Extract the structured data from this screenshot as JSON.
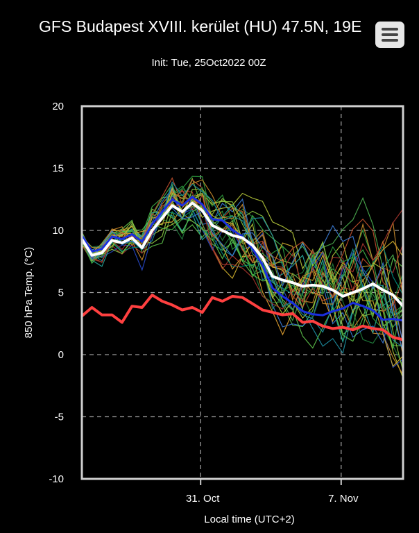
{
  "header": {
    "title": "GFS Budapest XVIII. kerület (HU) 47.5N, 19E",
    "subtitle": "Init: Tue, 25Oct2022 00Z",
    "menu_icon": "hamburger-menu-icon"
  },
  "colors": {
    "background": "#000000",
    "control": "#ffffff",
    "mean": "#ffffff",
    "climatology": "#ff4040",
    "grid": "#999999"
  },
  "chart_data": {
    "type": "line",
    "title": "GFS Budapest XVIII. kerület (HU) 47.5N, 19E",
    "subtitle": "Init: Tue, 25Oct2022 00Z",
    "xlabel": "Local time (UTC+2)",
    "ylabel": "850 hPa Temp. (°C)",
    "ylim": [
      -10,
      20
    ],
    "yticks": [
      -10,
      -5,
      0,
      5,
      10,
      15,
      20
    ],
    "x_tick_labels": [
      "31. Oct",
      "7. Nov"
    ],
    "xlim": [
      "2022-10-25T02:00",
      "2022-11-10T02:00"
    ],
    "x_ticks": [
      "2022-10-31T00:00",
      "2022-11-07T00:00"
    ],
    "grid": true,
    "series": [
      {
        "name": "",
        "color": "#ffffff",
        "x": [
          "2022-10-25T02:00",
          "2022-10-25T14:00",
          "2022-10-26T02:00",
          "2022-10-26T14:00",
          "2022-10-27T02:00",
          "2022-10-27T14:00",
          "2022-10-28T02:00",
          "2022-10-28T14:00",
          "2022-10-29T02:00",
          "2022-10-29T14:00",
          "2022-10-30T02:00",
          "2022-10-30T14:00",
          "2022-10-31T02:00",
          "2022-10-31T14:00",
          "2022-11-01T02:00",
          "2022-11-01T14:00",
          "2022-11-02T02:00",
          "2022-11-02T14:00",
          "2022-11-03T02:00",
          "2022-11-03T14:00",
          "2022-11-04T02:00",
          "2022-11-04T14:00",
          "2022-11-05T02:00",
          "2022-11-05T14:00",
          "2022-11-06T02:00",
          "2022-11-06T14:00",
          "2022-11-07T02:00",
          "2022-11-07T14:00",
          "2022-11-08T02:00",
          "2022-11-08T14:00",
          "2022-11-09T02:00",
          "2022-11-09T14:00",
          "2022-11-10T02:00"
        ],
        "values": [
          9.3,
          8.0,
          8.2,
          9.2,
          9.0,
          9.4,
          8.6,
          10.0,
          11.0,
          12.0,
          11.5,
          12.2,
          11.6,
          10.4,
          10.0,
          9.6,
          9.4,
          8.8,
          7.8,
          6.3,
          6.0,
          5.8,
          5.5,
          5.6,
          5.5,
          5.2,
          4.7,
          5.0,
          5.3,
          5.7,
          5.2,
          4.8,
          3.9
        ]
      },
      {
        "name": "",
        "color": "#ff4040",
        "x": [
          "2022-10-25T02:00",
          "2022-10-25T14:00",
          "2022-10-26T02:00",
          "2022-10-26T14:00",
          "2022-10-27T02:00",
          "2022-10-27T14:00",
          "2022-10-28T02:00",
          "2022-10-28T14:00",
          "2022-10-29T02:00",
          "2022-10-29T14:00",
          "2022-10-30T02:00",
          "2022-10-30T14:00",
          "2022-10-31T02:00",
          "2022-10-31T14:00",
          "2022-11-01T02:00",
          "2022-11-01T14:00",
          "2022-11-02T02:00",
          "2022-11-02T14:00",
          "2022-11-03T02:00",
          "2022-11-03T14:00",
          "2022-11-04T02:00",
          "2022-11-04T14:00",
          "2022-11-05T02:00",
          "2022-11-05T14:00",
          "2022-11-06T02:00",
          "2022-11-06T14:00",
          "2022-11-07T02:00",
          "2022-11-07T14:00",
          "2022-11-08T02:00",
          "2022-11-08T14:00",
          "2022-11-09T02:00",
          "2022-11-09T14:00",
          "2022-11-10T02:00"
        ],
        "values": [
          3.1,
          3.8,
          3.2,
          3.2,
          2.6,
          3.9,
          3.8,
          4.8,
          4.3,
          4.0,
          3.6,
          3.8,
          3.4,
          4.6,
          4.3,
          4.7,
          4.6,
          4.1,
          3.6,
          3.4,
          3.2,
          3.3,
          2.6,
          2.7,
          2.3,
          2.1,
          2.2,
          2.0,
          2.3,
          2.1,
          2.0,
          1.4,
          1.2
        ]
      }
    ]
  }
}
